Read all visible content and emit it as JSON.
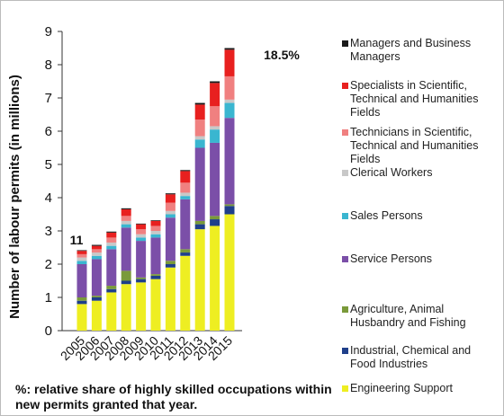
{
  "chart_data": {
    "type": "stacked_bar",
    "ylabel": "Number of labour permits (in millions)",
    "categories": [
      "2005",
      "2006",
      "2007",
      "2008",
      "2009",
      "2010",
      "2011",
      "2012",
      "2013",
      "2014",
      "2015"
    ],
    "series": [
      {
        "name": "Engineering Support",
        "color": "#eeee22",
        "values": [
          0.8,
          0.9,
          1.15,
          1.4,
          1.45,
          1.55,
          1.9,
          2.25,
          3.05,
          3.15,
          3.5
        ]
      },
      {
        "name": "Industrial, Chemical and Food Industries",
        "color": "#1f3f8a",
        "values": [
          0.1,
          0.1,
          0.1,
          0.1,
          0.1,
          0.1,
          0.1,
          0.1,
          0.15,
          0.2,
          0.25
        ]
      },
      {
        "name": "Agriculture, Animal Husbandry and Fishing",
        "color": "#7a9a3a",
        "values": [
          0.1,
          0.05,
          0.1,
          0.3,
          0.05,
          0.05,
          0.1,
          0.1,
          0.1,
          0.1,
          0.05
        ]
      },
      {
        "name": "Service Persons",
        "color": "#7b4fa8",
        "values": [
          1.0,
          1.1,
          1.1,
          1.3,
          1.1,
          1.1,
          1.3,
          1.5,
          2.2,
          2.2,
          2.6
        ]
      },
      {
        "name": "Sales Persons",
        "color": "#3ab6d0",
        "values": [
          0.1,
          0.1,
          0.1,
          0.1,
          0.1,
          0.1,
          0.1,
          0.1,
          0.25,
          0.4,
          0.45
        ]
      },
      {
        "name": "Clerical Workers",
        "color": "#c8c8c8",
        "values": [
          0.1,
          0.1,
          0.1,
          0.1,
          0.1,
          0.1,
          0.1,
          0.1,
          0.1,
          0.1,
          0.1
        ]
      },
      {
        "name": "Technicians in Scientific, Technical and Humanities Fields",
        "color": "#f08080",
        "values": [
          0.1,
          0.1,
          0.15,
          0.15,
          0.15,
          0.15,
          0.25,
          0.3,
          0.5,
          0.6,
          0.7
        ]
      },
      {
        "name": "Specialists in Scientific, Technical and Humanities Fields",
        "color": "#e8201f",
        "values": [
          0.1,
          0.1,
          0.15,
          0.2,
          0.15,
          0.15,
          0.25,
          0.35,
          0.45,
          0.7,
          0.8
        ]
      },
      {
        "name": "Managers and Business Managers",
        "color": "#1a1a1a",
        "values": [
          0.02,
          0.03,
          0.03,
          0.03,
          0.02,
          0.02,
          0.03,
          0.03,
          0.05,
          0.05,
          0.05
        ]
      }
    ],
    "ylim": [
      0,
      9
    ],
    "yticks": [
      0,
      1,
      2,
      3,
      4,
      5,
      6,
      7,
      8,
      9
    ],
    "annotations": [
      "11",
      "18.5%"
    ],
    "footnote": "%: relative share of highly skilled occupations within new permits granted that year."
  }
}
